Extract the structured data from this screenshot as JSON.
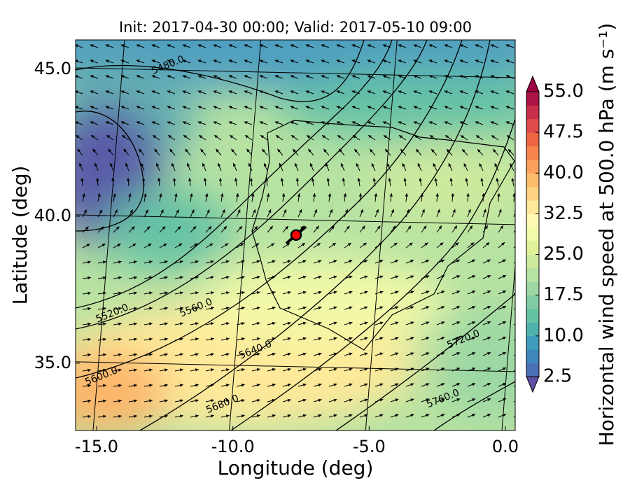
{
  "chart_data": {
    "type": "map",
    "title": "Init: 2017-04-30 00:00; Valid: 2017-05-10 09:00",
    "xlabel": "Longitude (deg)",
    "ylabel": "Latitude (deg)",
    "xlim": [
      -15.77,
      0.36
    ],
    "ylim": [
      32.71,
      46.0
    ],
    "xticks": [
      {
        "value": -15,
        "label": "-15.0"
      },
      {
        "value": -10,
        "label": "-10.0"
      },
      {
        "value": -5,
        "label": "-5.0"
      },
      {
        "value": 0,
        "label": "0.0"
      }
    ],
    "yticks": [
      {
        "value": 35,
        "label": "35.0"
      },
      {
        "value": 40,
        "label": "40.0"
      },
      {
        "value": 45,
        "label": "45.0"
      }
    ],
    "grid": true,
    "contour_labels": [
      {
        "value": 5480,
        "label": "5480.0",
        "x": -12.38,
        "y": 45.14
      },
      {
        "value": 5520,
        "label": "5520.0",
        "x": -14.43,
        "y": 36.69
      },
      {
        "value": 5560,
        "label": "5560.0",
        "x": -11.35,
        "y": 36.88
      },
      {
        "value": 5600,
        "label": "5600.0",
        "x": -14.82,
        "y": 34.55
      },
      {
        "value": 5640,
        "label": "5640.0",
        "x": -9.17,
        "y": 35.45
      },
      {
        "value": 5680,
        "label": "5680.0",
        "x": -10.38,
        "y": 33.6
      },
      {
        "value": 5720,
        "label": "5720.0",
        "x": -1.54,
        "y": 35.81
      },
      {
        "value": 5760,
        "label": "5760.0",
        "x": -2.29,
        "y": 33.79
      }
    ],
    "marker": {
      "x": -7.68,
      "y": 39.36,
      "color": "#ff0000"
    },
    "colorbar": {
      "label": "Horizontal wind speed at 500.0 hPa (m s⁻¹)",
      "lim": [
        2.5,
        55
      ],
      "ticks": [
        2.5,
        {
          "value": 10,
          "label": "10.0"
        },
        17.5,
        {
          "value": 25,
          "label": "25.0"
        },
        32.5,
        {
          "value": 40,
          "label": "40.0"
        },
        47.5,
        {
          "value": 55,
          "label": "55.0"
        }
      ],
      "colors": [
        "#4a6fb3",
        "#3f86bc",
        "#3d9dbb",
        "#4fb2ad",
        "#66c2a5",
        "#80cba4",
        "#9dd8a4",
        "#b6e2a2",
        "#cdea9e",
        "#e1f398",
        "#f2f9a8",
        "#fef9b3",
        "#fee99a",
        "#fed381",
        "#fdbb6c",
        "#fca05b",
        "#f7844c",
        "#ee6544",
        "#df4a4c",
        "#c92e4a",
        "#ad1446"
      ],
      "extend_low_color": "#5e4fa2",
      "extend_high_color": "#9e0142"
    }
  }
}
